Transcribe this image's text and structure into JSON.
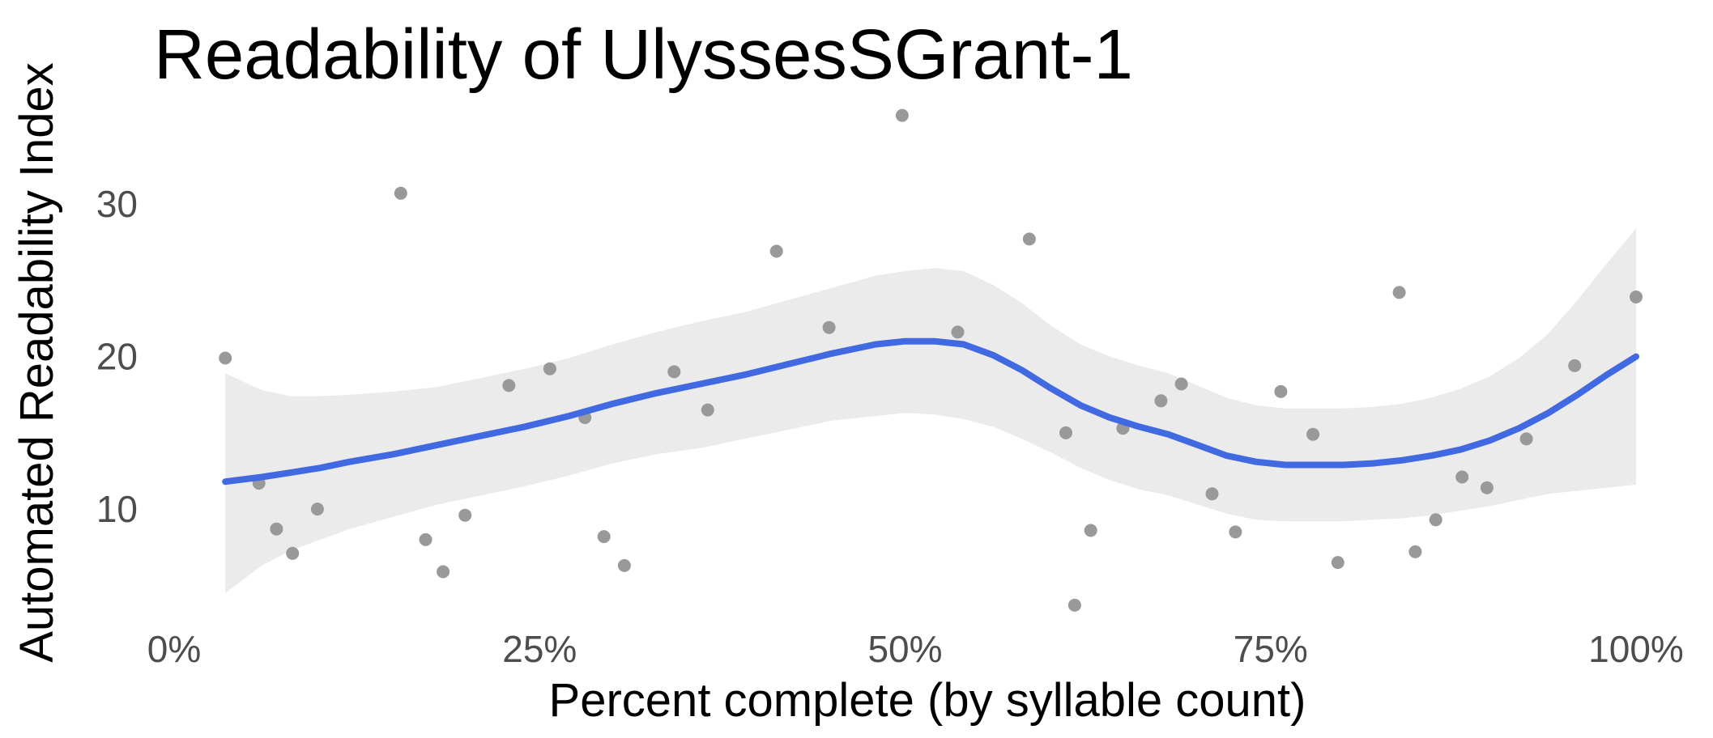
{
  "chart_data": {
    "type": "scatter",
    "title": "Readability of UlyssesSGrant-1",
    "xlabel": "Percent complete (by syllable count)",
    "ylabel": "Automated Readability Index",
    "xlim": [
      0,
      100
    ],
    "ylim": [
      2,
      37
    ],
    "x_ticks": [
      {
        "value": 0,
        "label": "0%"
      },
      {
        "value": 25,
        "label": "25%"
      },
      {
        "value": 50,
        "label": "50%"
      },
      {
        "value": 75,
        "label": "75%"
      },
      {
        "value": 100,
        "label": "100%"
      }
    ],
    "y_ticks": [
      {
        "value": 10,
        "label": "10"
      },
      {
        "value": 20,
        "label": "20"
      },
      {
        "value": 30,
        "label": "30"
      }
    ],
    "grid": false,
    "legend": "none",
    "colors": {
      "points": "#999999",
      "smooth_line": "#4169E1",
      "confidence_band": "#ebebeb"
    },
    "series": [
      {
        "kind": "points",
        "x": [
          3.5,
          5.8,
          7.0,
          8.1,
          9.8,
          15.5,
          17.2,
          18.4,
          19.9,
          22.9,
          25.7,
          28.1,
          29.4,
          30.8,
          34.2,
          36.5,
          41.2,
          44.8,
          49.8,
          53.6,
          58.5,
          61.0,
          61.6,
          62.7,
          64.9,
          67.5,
          68.9,
          71.0,
          72.6,
          75.7,
          77.9,
          79.6,
          83.8,
          84.9,
          86.3,
          88.1,
          89.8,
          92.5,
          95.8,
          100.0
        ],
        "y": [
          19.9,
          11.7,
          8.7,
          7.1,
          10.0,
          30.7,
          8.0,
          5.9,
          9.6,
          18.1,
          19.2,
          16.0,
          8.2,
          6.3,
          19.0,
          16.5,
          26.9,
          21.9,
          35.8,
          21.6,
          27.7,
          15.0,
          3.7,
          8.6,
          15.3,
          17.1,
          18.2,
          11.0,
          8.5,
          17.7,
          14.9,
          6.5,
          24.2,
          7.2,
          9.3,
          12.1,
          11.4,
          14.6,
          19.4,
          23.9
        ]
      },
      {
        "kind": "smooth",
        "x": [
          3.5,
          6.0,
          8.0,
          10.0,
          12.0,
          15.0,
          18.0,
          21.0,
          24.0,
          27.0,
          30.0,
          33.0,
          36.0,
          39.0,
          42.0,
          45.0,
          48.0,
          50.0,
          52.0,
          54.0,
          56.0,
          58.0,
          60.0,
          62.0,
          64.0,
          66.0,
          68.0,
          70.0,
          72.0,
          74.0,
          76.0,
          78.0,
          80.0,
          82.0,
          84.0,
          86.0,
          88.0,
          90.0,
          92.0,
          94.0,
          96.0,
          98.0,
          100.0
        ],
        "y": [
          11.8,
          12.1,
          12.4,
          12.7,
          13.1,
          13.6,
          14.2,
          14.8,
          15.4,
          16.1,
          16.9,
          17.6,
          18.2,
          18.8,
          19.5,
          20.2,
          20.8,
          21.0,
          21.0,
          20.8,
          20.1,
          19.1,
          17.9,
          16.8,
          16.0,
          15.4,
          14.9,
          14.2,
          13.5,
          13.1,
          12.9,
          12.9,
          12.9,
          13.0,
          13.2,
          13.5,
          13.9,
          14.5,
          15.3,
          16.3,
          17.5,
          18.8,
          20.0
        ],
        "lower": [
          4.5,
          6.3,
          7.3,
          8.0,
          8.7,
          9.5,
          10.3,
          10.9,
          11.5,
          12.2,
          13.0,
          13.6,
          14.0,
          14.6,
          15.2,
          15.8,
          16.1,
          16.3,
          16.2,
          15.9,
          15.4,
          14.6,
          13.7,
          12.7,
          11.9,
          11.3,
          10.9,
          10.3,
          9.7,
          9.3,
          9.2,
          9.2,
          9.2,
          9.3,
          9.4,
          9.6,
          9.9,
          10.2,
          10.6,
          11.0,
          11.2,
          11.4,
          11.6
        ],
        "upper": [
          18.9,
          17.8,
          17.4,
          17.4,
          17.5,
          17.7,
          18.0,
          18.6,
          19.2,
          19.9,
          20.8,
          21.6,
          22.3,
          22.9,
          23.7,
          24.5,
          25.3,
          25.6,
          25.8,
          25.6,
          24.7,
          23.5,
          22.0,
          20.8,
          20.0,
          19.4,
          18.9,
          18.1,
          17.3,
          16.8,
          16.6,
          16.6,
          16.6,
          16.7,
          16.9,
          17.3,
          17.9,
          18.7,
          19.9,
          21.5,
          23.7,
          26.1,
          28.4
        ]
      }
    ]
  }
}
